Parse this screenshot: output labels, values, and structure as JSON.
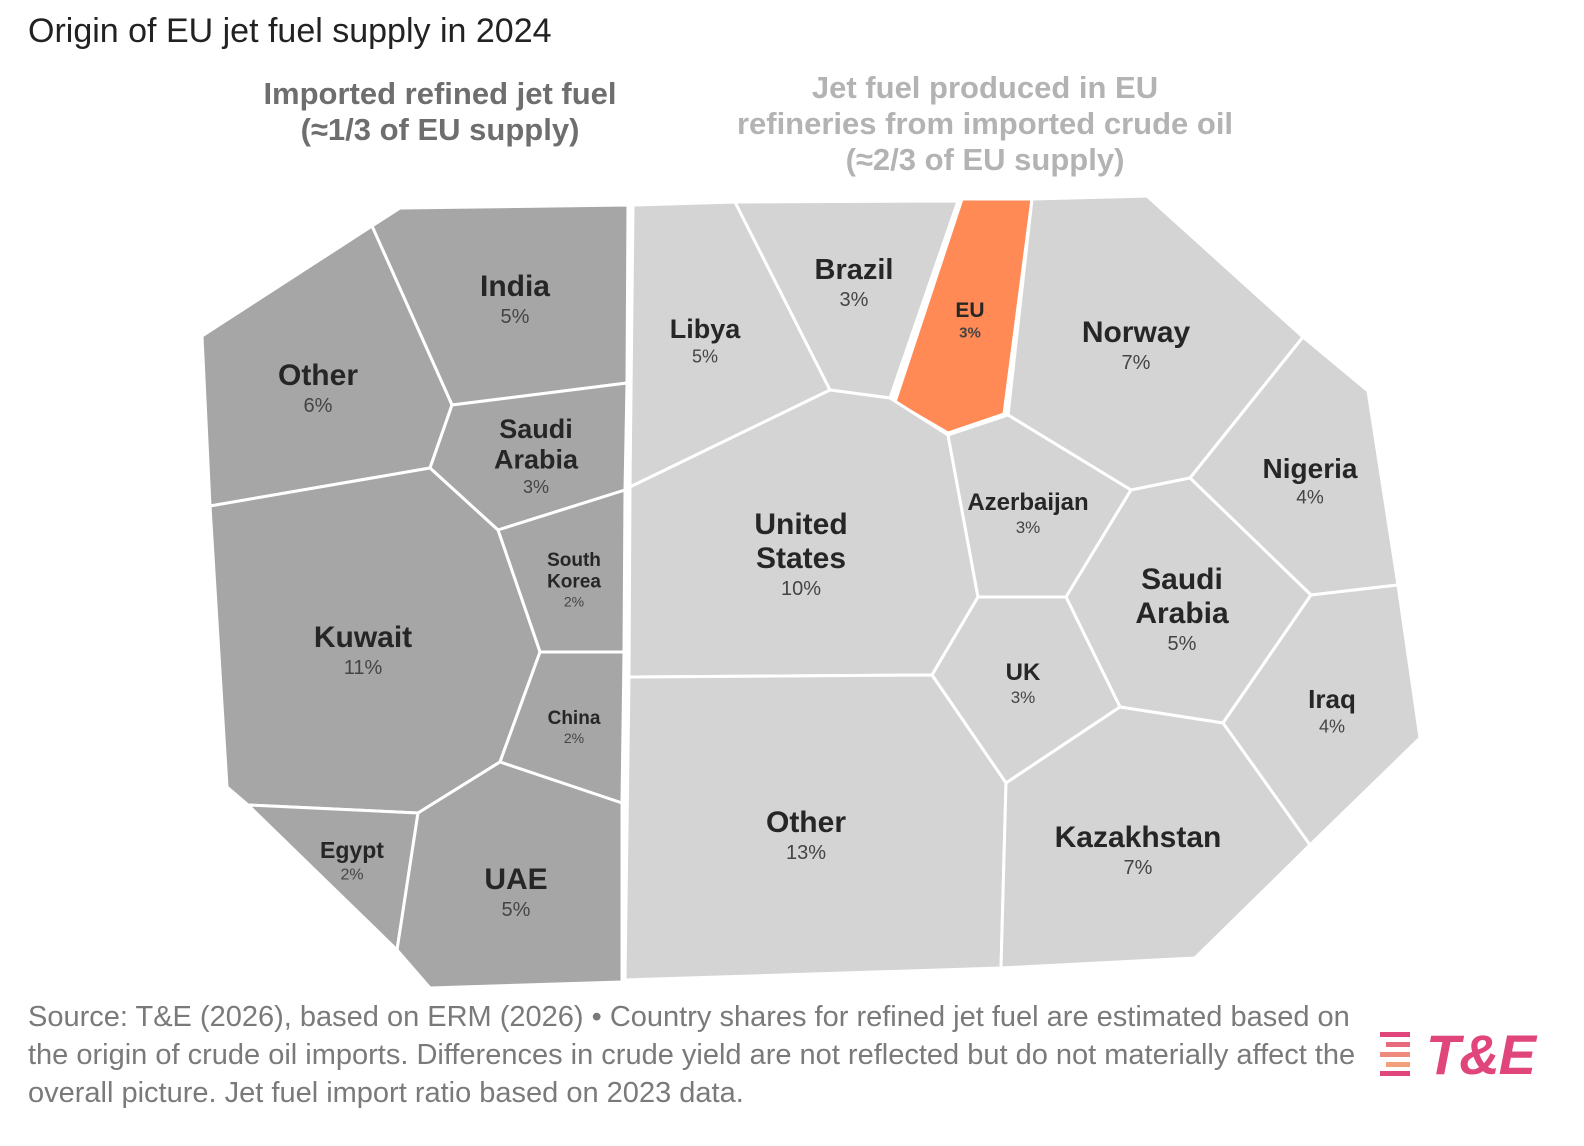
{
  "title": "Origin of EU jet fuel supply in 2024",
  "groups": {
    "imported_label": [
      "Imported refined jet fuel",
      "(≈1/3 of EU supply)"
    ],
    "produced_label": [
      "Jet fuel produced in EU",
      "refineries from imported crude oil",
      "(≈2/3 of EU supply)"
    ]
  },
  "colors": {
    "imported": "#a6a6a6",
    "produced": "#d4d4d4",
    "highlight": "#ff8a56",
    "border": "#ffffff"
  },
  "chart_data": {
    "type": "voronoi-treemap",
    "unit": "%",
    "groups": [
      {
        "name": "Imported refined jet fuel",
        "share": "≈1/3",
        "cells": [
          {
            "id": "india",
            "label": [
              "India"
            ],
            "value": "5%"
          },
          {
            "id": "other-imported",
            "label": [
              "Other"
            ],
            "value": "6%"
          },
          {
            "id": "saudi-imported",
            "label": [
              "Saudi",
              "Arabia"
            ],
            "value": "3%"
          },
          {
            "id": "south-korea",
            "label": [
              "South",
              "Korea"
            ],
            "value": "2%"
          },
          {
            "id": "kuwait",
            "label": [
              "Kuwait"
            ],
            "value": "11%"
          },
          {
            "id": "china",
            "label": [
              "China"
            ],
            "value": "2%"
          },
          {
            "id": "egypt",
            "label": [
              "Egypt"
            ],
            "value": "2%"
          },
          {
            "id": "uae",
            "label": [
              "UAE"
            ],
            "value": "5%"
          }
        ]
      },
      {
        "name": "Jet fuel produced in EU refineries from imported crude oil",
        "share": "≈2/3",
        "cells": [
          {
            "id": "libya",
            "label": [
              "Libya"
            ],
            "value": "5%"
          },
          {
            "id": "brazil",
            "label": [
              "Brazil"
            ],
            "value": "3%"
          },
          {
            "id": "eu",
            "label": [
              "EU"
            ],
            "value": "3%",
            "highlight": true
          },
          {
            "id": "norway",
            "label": [
              "Norway"
            ],
            "value": "7%"
          },
          {
            "id": "united-states",
            "label": [
              "United",
              "States"
            ],
            "value": "10%"
          },
          {
            "id": "azerbaijan",
            "label": [
              "Azerbaijan"
            ],
            "value": "3%"
          },
          {
            "id": "nigeria",
            "label": [
              "Nigeria"
            ],
            "value": "4%"
          },
          {
            "id": "saudi-produced",
            "label": [
              "Saudi",
              "Arabia"
            ],
            "value": "5%"
          },
          {
            "id": "uk",
            "label": [
              "UK"
            ],
            "value": "3%"
          },
          {
            "id": "iraq",
            "label": [
              "Iraq"
            ],
            "value": "4%"
          },
          {
            "id": "other-produced",
            "label": [
              "Other"
            ],
            "value": "13%"
          },
          {
            "id": "kazakhstan",
            "label": [
              "Kazakhstan"
            ],
            "value": "7%"
          }
        ]
      }
    ]
  },
  "source": "Source: T&E (2026), based on ERM (2026) • Country shares for refined jet fuel are estimated based on the origin of crude oil imports. Differences in crude yield are not reflected but do not materially affect the overall picture. Jet fuel import ratio based on 2023 data.",
  "logo": {
    "text": "T&E",
    "colors": [
      "#e0457b",
      "#f2a07a"
    ]
  }
}
